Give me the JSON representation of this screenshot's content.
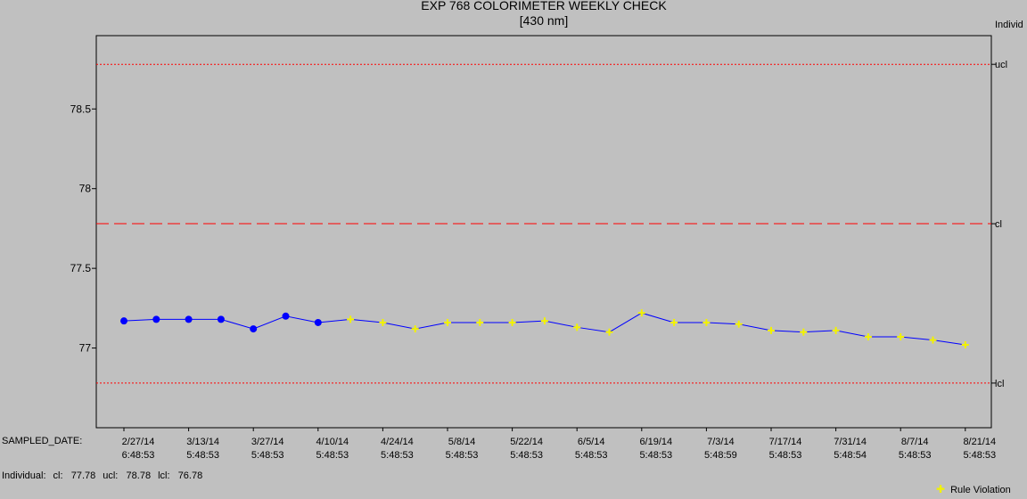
{
  "chart_data": {
    "type": "line",
    "title": "EXP 768 COLORIMETER WEEKLY CHECK",
    "subtitle": "[430 nm]",
    "xlabel": "SAMPLED_DATE:",
    "right_axis_title": "Individ",
    "ylim": [
      76.5,
      78.96
    ],
    "yticks": [
      77,
      77.5,
      78,
      78.5
    ],
    "ytick_labels": [
      "77",
      "77.5",
      "78",
      "78.5"
    ],
    "control_lines": [
      {
        "name": "ucl",
        "value": 78.78,
        "style": "dotted",
        "color": "#ff0000"
      },
      {
        "name": "cl",
        "value": 77.78,
        "style": "dashed",
        "color": "#ff0000"
      },
      {
        "name": "lcl",
        "value": 76.78,
        "style": "dotted",
        "color": "#ff0000"
      }
    ],
    "x_ticks": [
      {
        "index": 0,
        "date": "2/27/14",
        "time": "6:48:53"
      },
      {
        "index": 2,
        "date": "3/13/14",
        "time": "5:48:53"
      },
      {
        "index": 4,
        "date": "3/27/14",
        "time": "5:48:53"
      },
      {
        "index": 6,
        "date": "4/10/14",
        "time": "5:48:53"
      },
      {
        "index": 8,
        "date": "4/24/14",
        "time": "5:48:53"
      },
      {
        "index": 10,
        "date": "5/8/14",
        "time": "5:48:53"
      },
      {
        "index": 12,
        "date": "5/22/14",
        "time": "5:48:53"
      },
      {
        "index": 14,
        "date": "6/5/14",
        "time": "5:48:53"
      },
      {
        "index": 16,
        "date": "6/19/14",
        "time": "5:48:53"
      },
      {
        "index": 18,
        "date": "7/3/14",
        "time": "5:48:59"
      },
      {
        "index": 20,
        "date": "7/17/14",
        "time": "5:48:53"
      },
      {
        "index": 22,
        "date": "7/31/14",
        "time": "5:48:54"
      },
      {
        "index": 24,
        "date": "8/7/14",
        "time": "5:48:53"
      },
      {
        "index": 26,
        "date": "8/21/14",
        "time": "5:48:53"
      }
    ],
    "series": [
      {
        "values": [
          77.17,
          77.18,
          77.18,
          77.18,
          77.12,
          77.2,
          77.16,
          77.18,
          77.16,
          77.12,
          77.16,
          77.16,
          77.16,
          77.17,
          77.13,
          77.1,
          77.22,
          77.16,
          77.16,
          77.15,
          77.11,
          77.1,
          77.11,
          77.07,
          77.07,
          77.05,
          77.02
        ],
        "rule_violation": [
          false,
          false,
          false,
          false,
          false,
          false,
          false,
          true,
          true,
          true,
          true,
          true,
          true,
          true,
          true,
          true,
          true,
          true,
          true,
          true,
          true,
          true,
          true,
          true,
          true,
          true,
          true
        ],
        "line_color": "#0000ff",
        "point_color": "#0000ff",
        "violation_color": "#f2f200"
      }
    ],
    "legend": [
      {
        "label": "Rule Violation",
        "placement": "bottom-right"
      }
    ]
  },
  "footer": {
    "label": "Individual:",
    "cl": "cl:   77.78",
    "ucl": "ucl:   78.78",
    "lcl": "lcl:   76.78"
  }
}
